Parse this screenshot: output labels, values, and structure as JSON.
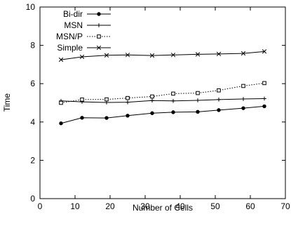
{
  "chart_data": {
    "type": "line",
    "title": "",
    "xlabel": "Number of Cells",
    "ylabel": "Time",
    "xlim": [
      0,
      70
    ],
    "ylim": [
      0,
      10
    ],
    "xticks": [
      "0",
      "10",
      "20",
      "30",
      "40",
      "50",
      "60",
      "70"
    ],
    "yticks": [
      "0",
      "2",
      "4",
      "6",
      "8",
      "10"
    ],
    "grid": false,
    "legend_position": "top-left",
    "x": [
      6,
      12,
      19,
      25,
      32,
      38,
      45,
      51,
      58,
      64
    ],
    "series": [
      {
        "name": "Bi-dir",
        "marker": "filled-circle",
        "dash": "solid",
        "values": [
          3.93,
          4.22,
          4.21,
          4.33,
          4.46,
          4.51,
          4.53,
          4.62,
          4.72,
          4.82
        ]
      },
      {
        "name": "MSN",
        "marker": "plus",
        "dash": "solid",
        "values": [
          5.1,
          5.05,
          5.02,
          5.03,
          5.12,
          5.1,
          5.13,
          5.17,
          5.2,
          5.22
        ]
      },
      {
        "name": "MSN/P",
        "marker": "open-square",
        "dash": "dotted",
        "values": [
          5.0,
          5.17,
          5.18,
          5.25,
          5.33,
          5.48,
          5.51,
          5.65,
          5.88,
          6.03
        ]
      },
      {
        "name": "Simple",
        "marker": "cross",
        "dash": "solid",
        "values": [
          7.25,
          7.4,
          7.48,
          7.5,
          7.47,
          7.5,
          7.53,
          7.55,
          7.58,
          7.68
        ]
      }
    ]
  }
}
